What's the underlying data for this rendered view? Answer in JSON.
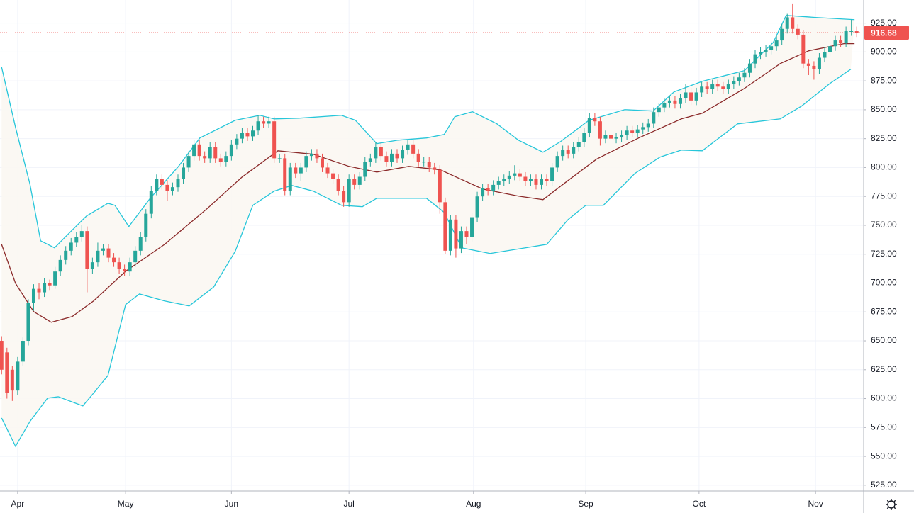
{
  "chart_data": {
    "type": "candlestick",
    "up_color": "#26a69a",
    "down_color": "#ef5350",
    "xlim": [
      -0.3,
      161.3
    ],
    "xticks": [
      {
        "value": 3,
        "label": "Apr"
      },
      {
        "value": 23.2,
        "label": "May"
      },
      {
        "value": 43,
        "label": "Jun"
      },
      {
        "value": 65,
        "label": "Jul"
      },
      {
        "value": 88.3,
        "label": "Aug"
      },
      {
        "value": 109.3,
        "label": "Sep"
      },
      {
        "value": 130.5,
        "label": "Oct"
      },
      {
        "value": 152.3,
        "label": "Nov"
      }
    ],
    "ylim": [
      520,
      945
    ],
    "yticks": [
      {
        "value": 525,
        "label": "525.00"
      },
      {
        "value": 550,
        "label": "550.00"
      },
      {
        "value": 575,
        "label": "575.00"
      },
      {
        "value": 600,
        "label": "600.00"
      },
      {
        "value": 625,
        "label": "625.00"
      },
      {
        "value": 650,
        "label": "650.00"
      },
      {
        "value": 675,
        "label": "675.00"
      },
      {
        "value": 700,
        "label": "700.00"
      },
      {
        "value": 725,
        "label": "725.00"
      },
      {
        "value": 750,
        "label": "750.00"
      },
      {
        "value": 775,
        "label": "775.00"
      },
      {
        "value": 800,
        "label": "800.00"
      },
      {
        "value": 825,
        "label": "825.00"
      },
      {
        "value": 850,
        "label": "850.00"
      },
      {
        "value": 875,
        "label": "875.00"
      },
      {
        "value": 900,
        "label": "900.00"
      },
      {
        "value": 925,
        "label": "925.00"
      }
    ],
    "grid": true,
    "open": [
      650,
      640,
      625,
      607,
      632,
      650,
      683,
      695,
      692,
      700,
      698,
      710,
      720,
      728,
      735,
      740,
      745,
      712,
      718,
      728,
      730,
      722,
      718,
      712,
      710,
      718,
      728,
      740,
      760,
      780,
      790,
      785,
      780,
      783,
      790,
      800,
      810,
      820,
      810,
      808,
      818,
      808,
      805,
      810,
      820,
      825,
      830,
      827,
      832,
      840,
      838,
      840,
      808,
      808,
      780,
      800,
      795,
      800,
      810,
      812,
      808,
      800,
      795,
      790,
      780,
      770,
      790,
      785,
      792,
      805,
      808,
      818,
      810,
      805,
      812,
      808,
      815,
      820,
      812,
      805,
      805,
      800,
      798,
      770,
      728,
      755,
      730,
      745,
      740,
      757,
      775,
      782,
      780,
      785,
      788,
      790,
      793,
      795,
      792,
      788,
      790,
      785,
      790,
      788,
      800,
      810,
      815,
      812,
      818,
      822,
      830,
      843,
      840,
      825,
      828,
      825,
      826,
      828,
      832,
      830,
      833,
      835,
      838,
      848,
      852,
      856,
      858,
      855,
      860,
      865,
      858,
      865,
      870,
      868,
      872,
      870,
      868,
      872,
      875,
      878,
      882,
      890,
      898,
      900,
      902,
      905,
      910,
      920,
      930,
      920,
      915,
      890,
      888,
      885,
      895,
      900,
      905,
      910,
      908,
      918,
      918
    ],
    "high": [
      654,
      644,
      628,
      636,
      653,
      686,
      699,
      700,
      704,
      703,
      714,
      724,
      732,
      739,
      744,
      750,
      749,
      722,
      735,
      734,
      734,
      726,
      722,
      716,
      722,
      732,
      744,
      764,
      784,
      794,
      794,
      789,
      787,
      794,
      804,
      814,
      824,
      824,
      814,
      822,
      822,
      812,
      814,
      824,
      829,
      834,
      834,
      836,
      845,
      844,
      844,
      844,
      812,
      812,
      804,
      804,
      804,
      814,
      816,
      816,
      812,
      804,
      799,
      794,
      784,
      794,
      794,
      796,
      809,
      812,
      822,
      822,
      814,
      816,
      816,
      819,
      824,
      824,
      816,
      809,
      809,
      804,
      802,
      774,
      759,
      759,
      749,
      749,
      761,
      779,
      786,
      786,
      789,
      792,
      794,
      797,
      802,
      799,
      796,
      794,
      794,
      794,
      794,
      804,
      814,
      819,
      819,
      822,
      826,
      834,
      847,
      847,
      844,
      832,
      832,
      830,
      832,
      836,
      836,
      837,
      839,
      842,
      852,
      856,
      860,
      862,
      862,
      864,
      872,
      869,
      869,
      874,
      874,
      876,
      876,
      874,
      876,
      879,
      882,
      886,
      894,
      902,
      904,
      906,
      909,
      914,
      924,
      933,
      942,
      924,
      919,
      894,
      892,
      899,
      904,
      909,
      914,
      914,
      922,
      928,
      922
    ],
    "low": [
      621,
      600,
      598,
      603,
      628,
      646,
      676,
      686,
      688,
      694,
      695,
      706,
      716,
      724,
      731,
      736,
      692,
      708,
      714,
      724,
      718,
      714,
      708,
      706,
      706,
      714,
      724,
      736,
      756,
      776,
      781,
      771,
      776,
      779,
      786,
      796,
      806,
      806,
      804,
      804,
      804,
      801,
      801,
      806,
      816,
      821,
      823,
      823,
      828,
      834,
      834,
      804,
      804,
      776,
      776,
      791,
      788,
      796,
      806,
      804,
      796,
      791,
      786,
      776,
      766,
      766,
      781,
      781,
      788,
      801,
      804,
      806,
      801,
      801,
      804,
      804,
      811,
      808,
      801,
      801,
      796,
      794,
      760,
      725,
      724,
      722,
      726,
      734,
      736,
      753,
      771,
      776,
      776,
      781,
      784,
      786,
      789,
      788,
      784,
      784,
      781,
      781,
      784,
      784,
      796,
      806,
      808,
      808,
      814,
      818,
      826,
      836,
      819,
      821,
      817,
      821,
      822,
      824,
      826,
      826,
      829,
      831,
      834,
      844,
      848,
      852,
      851,
      851,
      856,
      854,
      854,
      861,
      864,
      864,
      866,
      864,
      864,
      868,
      871,
      874,
      878,
      886,
      894,
      896,
      898,
      901,
      906,
      916,
      916,
      911,
      886,
      880,
      876,
      881,
      891,
      896,
      901,
      904,
      904,
      914,
      913
    ],
    "close": [
      625,
      605,
      607,
      632,
      650,
      683,
      695,
      692,
      700,
      698,
      710,
      720,
      728,
      735,
      740,
      745,
      712,
      718,
      728,
      730,
      722,
      718,
      712,
      710,
      718,
      728,
      740,
      760,
      780,
      790,
      785,
      780,
      783,
      790,
      800,
      810,
      820,
      810,
      808,
      818,
      808,
      805,
      810,
      820,
      825,
      830,
      827,
      832,
      840,
      838,
      840,
      808,
      808,
      780,
      800,
      795,
      800,
      810,
      812,
      808,
      800,
      795,
      790,
      780,
      770,
      790,
      785,
      792,
      805,
      808,
      818,
      810,
      805,
      812,
      808,
      815,
      820,
      812,
      805,
      805,
      800,
      798,
      770,
      728,
      755,
      730,
      745,
      740,
      757,
      775,
      782,
      780,
      785,
      788,
      790,
      793,
      795,
      792,
      788,
      790,
      785,
      790,
      788,
      800,
      810,
      815,
      812,
      818,
      822,
      830,
      843,
      840,
      825,
      828,
      825,
      826,
      828,
      832,
      830,
      833,
      835,
      838,
      848,
      852,
      856,
      858,
      855,
      860,
      865,
      858,
      865,
      870,
      868,
      872,
      870,
      868,
      872,
      875,
      878,
      882,
      890,
      898,
      900,
      902,
      905,
      910,
      920,
      930,
      920,
      915,
      890,
      888,
      885,
      895,
      900,
      905,
      910,
      908,
      918,
      918,
      916.68
    ],
    "bands": [
      {
        "color": "#26c6da",
        "x": [
          0,
          2.6,
          5.3,
          7.3,
          9.9,
          13.2,
          15.9,
          19.9,
          21.2,
          23.8,
          27.8,
          33.1,
          37.1,
          43.7,
          48.3,
          51,
          55.6,
          63.6,
          66.2,
          70.2,
          74.2,
          79.5,
          82.8,
          84.8,
          88.1,
          92.7,
          96.7,
          101.3,
          104.6,
          109.9,
          116.6,
          121.9,
          125.8,
          131.1,
          139,
          144.4,
          146.8,
          152.3,
          159.6
        ],
        "values": [
          886.9,
          834.8,
          785.7,
          736.6,
          730.5,
          745.8,
          758.1,
          769.1,
          767.3,
          748.9,
          773.4,
          801,
          825.6,
          840.9,
          845.2,
          842.1,
          842.7,
          845.2,
          840.9,
          820.7,
          823.7,
          825.6,
          828.6,
          844,
          848.3,
          837.8,
          823.7,
          813.3,
          822.5,
          840.9,
          850.1,
          848.9,
          865.4,
          874.6,
          883.9,
          908.4,
          931.7,
          929.9,
          928
        ]
      },
      {
        "color": "#8b2a2a",
        "x": [
          0,
          2.6,
          6,
          9.3,
          13.2,
          17.2,
          23.2,
          30.5,
          38.4,
          45,
          51.7,
          58.3,
          65,
          70.2,
          76.2,
          82.1,
          90,
          96.7,
          101.3,
          106,
          111.3,
          119.2,
          127.2,
          131.1,
          139,
          145.7,
          151,
          157.6,
          159.6
        ],
        "values": [
          733.5,
          699.8,
          675.3,
          666.1,
          671,
          684.5,
          710.2,
          733.5,
          764.2,
          791.8,
          814.5,
          811.5,
          801,
          796.1,
          801,
          798,
          781.4,
          775.3,
          772.2,
          788.8,
          807.2,
          825.6,
          842.1,
          847,
          868.5,
          890,
          901,
          907.2,
          907.2
        ]
      },
      {
        "color": "#26c6da",
        "x": [
          0,
          2.6,
          5.3,
          8.6,
          10.6,
          15.2,
          17.2,
          19.9,
          23.2,
          25.8,
          30.5,
          35.1,
          39.7,
          43.7,
          47,
          51,
          54.3,
          58.3,
          63.6,
          67.5,
          70.2,
          79.5,
          82.8,
          86.1,
          91.4,
          98,
          102,
          106,
          109.3,
          112.6,
          118.5,
          123.2,
          127.2,
          131.1,
          137.7,
          145.7,
          149.7,
          155,
          158.9
        ],
        "values": [
          583.2,
          558.7,
          580.2,
          600.4,
          601.6,
          593.7,
          604.7,
          620,
          681.4,
          690.6,
          684.5,
          680.2,
          696.7,
          727.4,
          767.3,
          779.6,
          784.5,
          779.6,
          767.3,
          766.1,
          773.4,
          773.4,
          761.2,
          730.5,
          725.6,
          730.5,
          733.5,
          755,
          767.3,
          767.3,
          794.9,
          809,
          815.1,
          814.5,
          837.8,
          842.1,
          853.2,
          872.8,
          885.1
        ]
      }
    ]
  }
}
